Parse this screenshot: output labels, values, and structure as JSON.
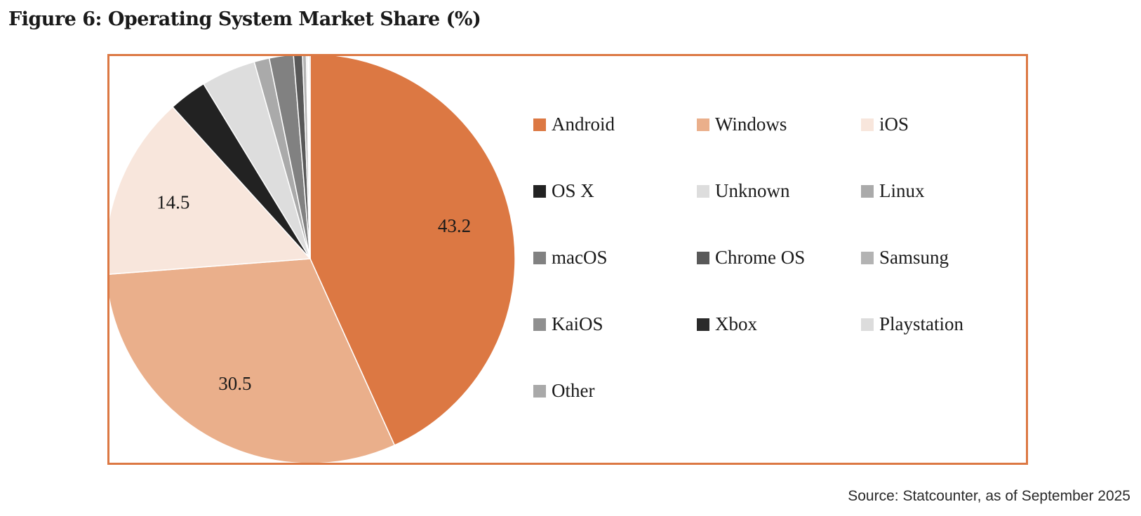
{
  "chart_data": {
    "type": "pie",
    "title": "Figure 6: Operating System Market Share (%)",
    "source": "Source: Statcounter, as of September 2025",
    "slices": [
      {
        "name": "Android",
        "value": 43.2,
        "color": "#dc7843",
        "label": "43.2"
      },
      {
        "name": "Windows",
        "value": 30.5,
        "color": "#eaaf8b",
        "label": "30.5"
      },
      {
        "name": "iOS",
        "value": 14.5,
        "color": "#f8e6dc",
        "label": "14.5"
      },
      {
        "name": "OS X",
        "value": 3.0,
        "color": "#222222",
        "label": ""
      },
      {
        "name": "Unknown",
        "value": 4.3,
        "color": "#dddddd",
        "label": ""
      },
      {
        "name": "Linux",
        "value": 1.2,
        "color": "#aaaaaa",
        "label": ""
      },
      {
        "name": "macOS",
        "value": 1.9,
        "color": "#818181",
        "label": ""
      },
      {
        "name": "Chrome OS",
        "value": 0.7,
        "color": "#595959",
        "label": ""
      },
      {
        "name": "Samsung",
        "value": 0.3,
        "color": "#b3b3b3",
        "label": ""
      },
      {
        "name": "KaiOS",
        "value": 0.1,
        "color": "#8f8f8f",
        "label": ""
      },
      {
        "name": "Xbox",
        "value": 0.05,
        "color": "#2a2a2a",
        "label": ""
      },
      {
        "name": "Playstation",
        "value": 0.05,
        "color": "#dcdcdc",
        "label": ""
      },
      {
        "name": "Other",
        "value": 0.1,
        "color": "#a9a9a9",
        "label": ""
      }
    ],
    "legend_position": "right"
  }
}
